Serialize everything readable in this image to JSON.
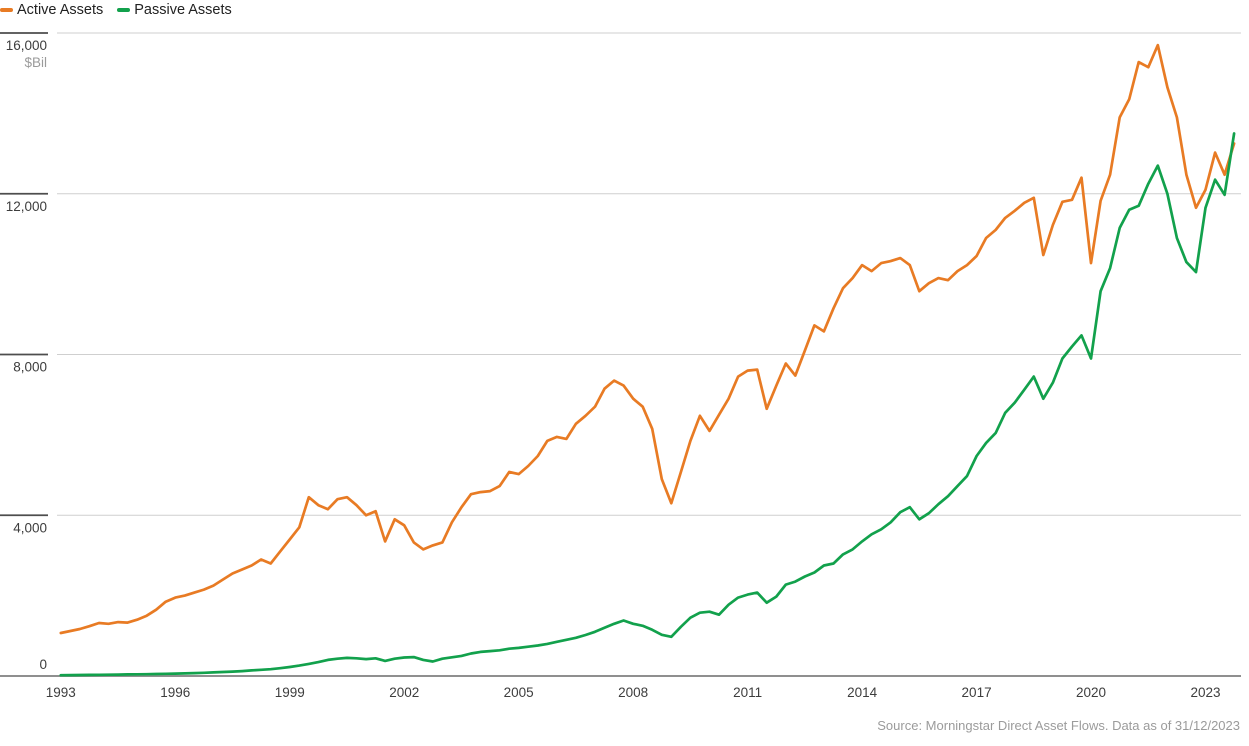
{
  "source": {
    "text": "Source: Morningstar Direct Asset Flows. Data as of 31/12/2023"
  },
  "chart_data": {
    "type": "line",
    "title": "",
    "xlabel": "",
    "ylabel": "$Bil",
    "legend_position": "top-left",
    "grid": "horizontal",
    "xlim": [
      1992.9,
      2023.93
    ],
    "ylim": [
      0,
      16000
    ],
    "x_start": 1993.0,
    "x_step": 0.25,
    "xticks": [
      1993,
      1996,
      1999,
      2002,
      2005,
      2008,
      2011,
      2014,
      2017,
      2020,
      2023
    ],
    "ytick_values": [
      0,
      4000,
      8000,
      12000,
      16000
    ],
    "ytick_labels": [
      "0",
      "4,000",
      "8,000",
      "12,000",
      "16,000"
    ],
    "series": [
      {
        "name": "Active Assets",
        "color": "#E87B24",
        "values": [
          1070,
          1120,
          1170,
          1240,
          1320,
          1300,
          1340,
          1330,
          1400,
          1500,
          1650,
          1850,
          1950,
          2000,
          2075,
          2150,
          2250,
          2400,
          2550,
          2650,
          2750,
          2900,
          2800,
          3100,
          3400,
          3700,
          4450,
          4250,
          4150,
          4400,
          4450,
          4250,
          4000,
          4100,
          3350,
          3900,
          3750,
          3325,
          3150,
          3250,
          3325,
          3825,
          4200,
          4525,
          4575,
          4600,
          4725,
          5075,
          5025,
          5225,
          5475,
          5850,
          5950,
          5900,
          6275,
          6475,
          6700,
          7150,
          7350,
          7225,
          6900,
          6700,
          6150,
          4900,
          4300,
          5075,
          5850,
          6475,
          6100,
          6500,
          6900,
          7450,
          7600,
          7625,
          6650,
          7225,
          7775,
          7475,
          8100,
          8725,
          8575,
          9150,
          9650,
          9900,
          10225,
          10075,
          10275,
          10325,
          10400,
          10225,
          9575,
          9775,
          9900,
          9850,
          10075,
          10225,
          10450,
          10900,
          11100,
          11400,
          11575,
          11775,
          11900,
          10475,
          11225,
          11800,
          11850,
          12400,
          10275,
          11825,
          12475,
          13900,
          14350,
          15275,
          15150,
          15700,
          14650,
          13900,
          12475,
          11650,
          12100,
          13025,
          12475,
          13250
        ]
      },
      {
        "name": "Passive Assets",
        "color": "#12A14C",
        "values": [
          20,
          22,
          25,
          28,
          30,
          33,
          36,
          40,
          42,
          45,
          50,
          55,
          60,
          65,
          72,
          80,
          90,
          100,
          110,
          122,
          140,
          155,
          170,
          195,
          225,
          260,
          300,
          345,
          400,
          430,
          450,
          440,
          420,
          440,
          375,
          430,
          460,
          470,
          400,
          360,
          430,
          465,
          500,
          560,
          600,
          620,
          640,
          680,
          700,
          730,
          760,
          800,
          850,
          900,
          950,
          1020,
          1100,
          1200,
          1300,
          1380,
          1300,
          1250,
          1150,
          1025,
          975,
          1225,
          1450,
          1575,
          1600,
          1525,
          1775,
          1950,
          2025,
          2075,
          1825,
          1975,
          2275,
          2350,
          2475,
          2575,
          2750,
          2800,
          3025,
          3150,
          3350,
          3525,
          3650,
          3825,
          4075,
          4200,
          3900,
          4050,
          4275,
          4475,
          4725,
          4975,
          5475,
          5800,
          6050,
          6550,
          6800,
          7125,
          7450,
          6900,
          7300,
          7900,
          8200,
          8475,
          7900,
          9575,
          10150,
          11150,
          11600,
          11700,
          12250,
          12700,
          12000,
          10900,
          10300,
          10050,
          11650,
          12350,
          11975,
          13500
        ]
      }
    ]
  }
}
